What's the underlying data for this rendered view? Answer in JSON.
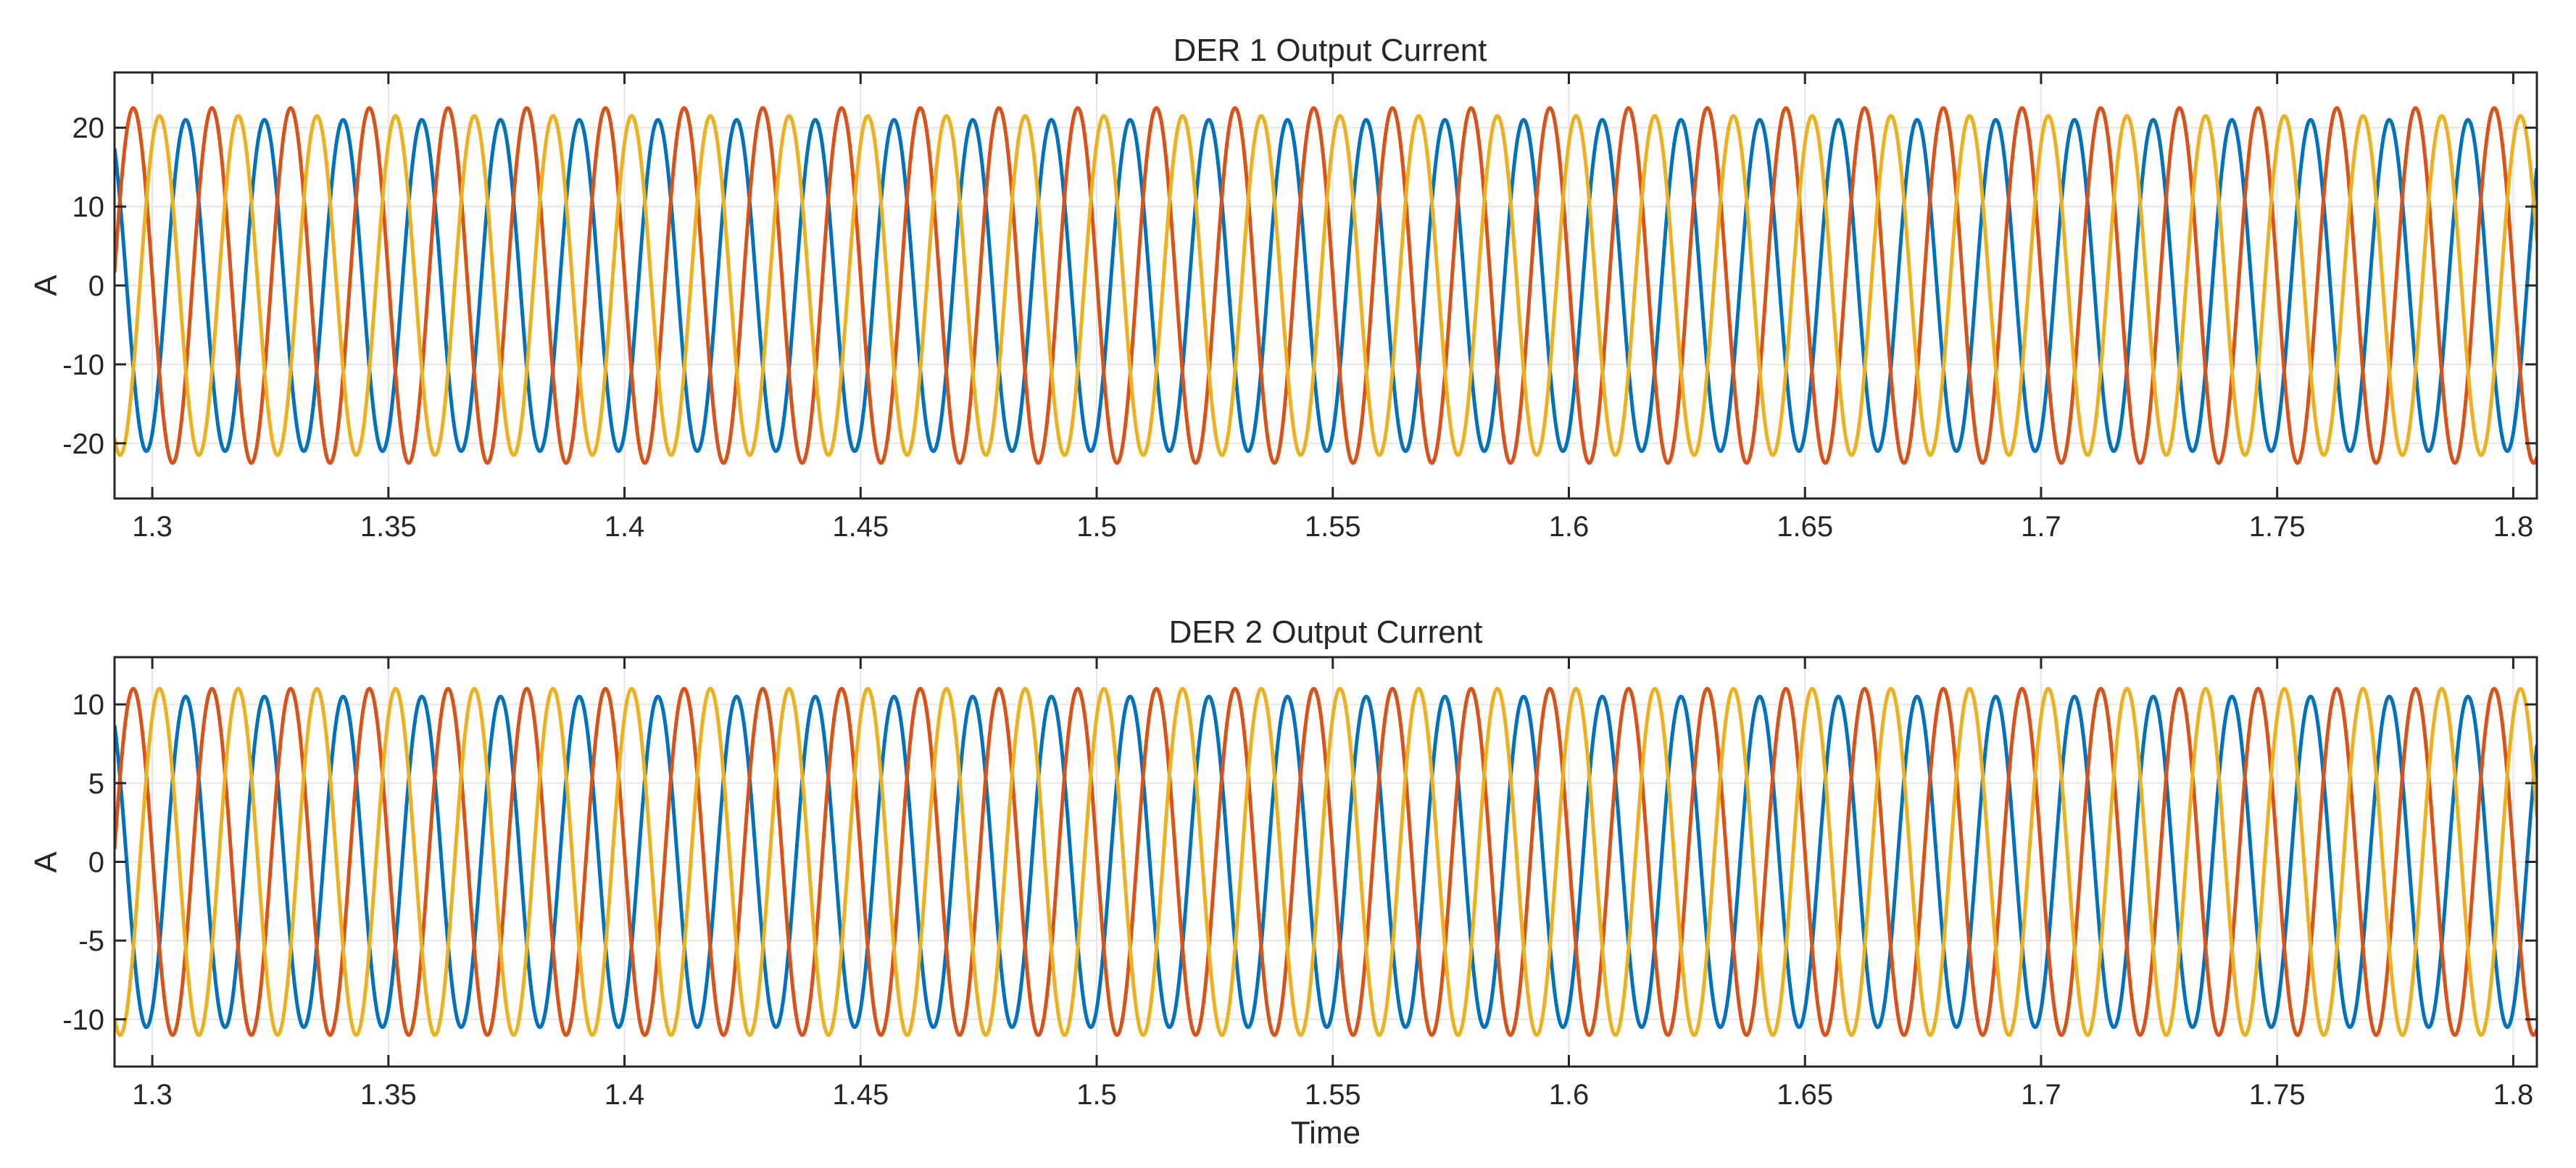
{
  "chart_data": [
    {
      "type": "line",
      "title": "DER 1 Output Current",
      "xlabel": "",
      "ylabel": "A",
      "xlim": [
        1.292,
        1.805
      ],
      "ylim": [
        -27,
        27
      ],
      "xticks": [
        1.3,
        1.35,
        1.4,
        1.45,
        1.5,
        1.55,
        1.6,
        1.65,
        1.7,
        1.75,
        1.8
      ],
      "xtick_labels": [
        "1.3",
        "1.35",
        "1.4",
        "1.45",
        "1.5",
        "1.55",
        "1.6",
        "1.65",
        "1.7",
        "1.75",
        "1.8"
      ],
      "yticks": [
        -20,
        -10,
        0,
        10,
        20
      ],
      "ytick_labels": [
        "-20",
        "-10",
        "0",
        "10",
        "20"
      ],
      "grid": true,
      "legend": "none",
      "frequency_hz": 60,
      "series": [
        {
          "color": "#0072BD",
          "amplitude": 21,
          "phase_deg": -63
        },
        {
          "color": "#D95319",
          "amplitude": 22.5,
          "phase_deg": 177
        },
        {
          "color": "#EDB120",
          "amplitude": 21.5,
          "phase_deg": 57
        }
      ]
    },
    {
      "type": "line",
      "title": "DER 2 Output Current",
      "xlabel": "Time",
      "ylabel": "A",
      "xlim": [
        1.292,
        1.805
      ],
      "ylim": [
        -13,
        13
      ],
      "xticks": [
        1.3,
        1.35,
        1.4,
        1.45,
        1.5,
        1.55,
        1.6,
        1.65,
        1.7,
        1.75,
        1.8
      ],
      "xtick_labels": [
        "1.3",
        "1.35",
        "1.4",
        "1.45",
        "1.5",
        "1.55",
        "1.6",
        "1.65",
        "1.7",
        "1.75",
        "1.8"
      ],
      "yticks": [
        -10,
        -5,
        0,
        5,
        10
      ],
      "ytick_labels": [
        "-10",
        "-5",
        "0",
        "5",
        "10"
      ],
      "grid": true,
      "legend": "none",
      "frequency_hz": 60,
      "series": [
        {
          "color": "#0072BD",
          "amplitude": 10.5,
          "phase_deg": -63
        },
        {
          "color": "#D95319",
          "amplitude": 11,
          "phase_deg": 177
        },
        {
          "color": "#EDB120",
          "amplitude": 11,
          "phase_deg": 57
        }
      ]
    }
  ]
}
